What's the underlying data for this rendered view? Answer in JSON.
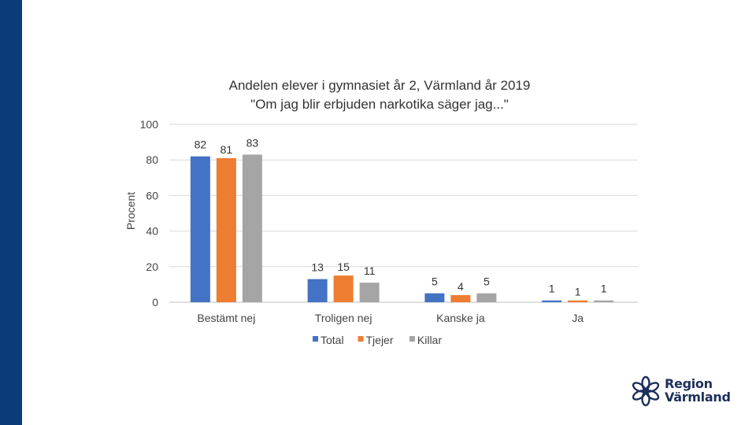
{
  "logo": {
    "line1": "Region",
    "line2": "Värmland"
  },
  "chart_data": {
    "type": "bar",
    "title": [
      "Andelen elever i gymnasiet år 2, Värmland år 2019",
      "\"Om jag blir erbjuden narkotika säger jag...\""
    ],
    "ylabel": "Procent",
    "xlabel": "",
    "ylim": [
      0,
      100
    ],
    "yticks": [
      0,
      20,
      40,
      60,
      80,
      100
    ],
    "grid": true,
    "legend_position": "bottom",
    "categories": [
      "Bestämt nej",
      "Troligen nej",
      "Kanske ja",
      "Ja"
    ],
    "series": [
      {
        "name": "Total",
        "color": "#4472c4",
        "values": [
          82,
          13,
          5,
          1
        ]
      },
      {
        "name": "Tjejer",
        "color": "#ed7d31",
        "values": [
          81,
          15,
          4,
          1
        ]
      },
      {
        "name": "Killar",
        "color": "#a5a5a5",
        "values": [
          83,
          11,
          5,
          1
        ]
      }
    ]
  }
}
